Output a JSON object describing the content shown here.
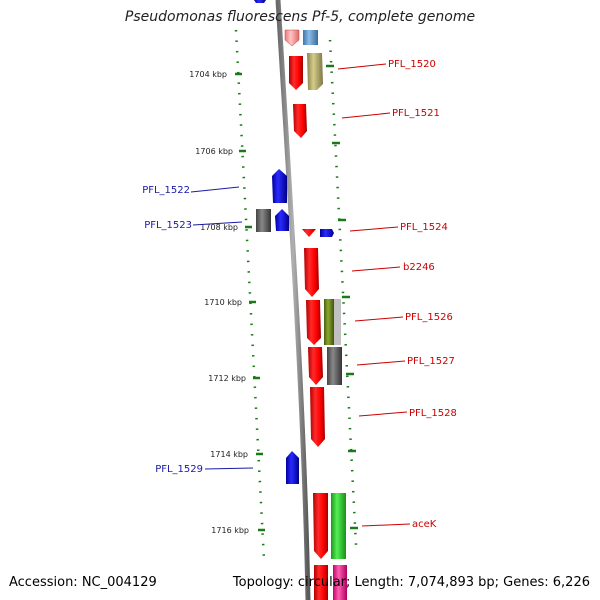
{
  "title": "Pseudomonas fluorescens Pf-5, complete genome",
  "accession_text": "Accession: NC_004129",
  "topology_text": "Topology: circular; Length: 7,074,893 bp; Genes: 6,226",
  "ticks": [
    {
      "label": "1704 kbp",
      "kbp": 1704
    },
    {
      "label": "1706 kbp",
      "kbp": 1706
    },
    {
      "label": "1708 kbp",
      "kbp": 1708
    },
    {
      "label": "1710 kbp",
      "kbp": 1710
    },
    {
      "label": "1712 kbp",
      "kbp": 1712
    },
    {
      "label": "1714 kbp",
      "kbp": 1714
    },
    {
      "label": "1716 kbp",
      "kbp": 1716
    }
  ],
  "gene_labels_left": [
    {
      "text": "PFL_1522",
      "color": "#1a1aa8"
    },
    {
      "text": "PFL_1523",
      "color": "#1a1aa8"
    },
    {
      "text": "PFL_1529",
      "color": "#1a1aa8"
    }
  ],
  "gene_labels_right": [
    {
      "text": "PFL_1520",
      "color": "#cc0000"
    },
    {
      "text": "PFL_1521",
      "color": "#cc0000"
    },
    {
      "text": "PFL_1524",
      "color": "#cc0000"
    },
    {
      "text": "b2246",
      "color": "#cc0000"
    },
    {
      "text": "PFL_1526",
      "color": "#cc0000"
    },
    {
      "text": "PFL_1527",
      "color": "#cc0000"
    },
    {
      "text": "PFL_1528",
      "color": "#cc0000"
    },
    {
      "text": "aceK",
      "color": "#cc0000"
    }
  ],
  "colors": {
    "forward_strand": "#ff0000",
    "reverse_strand": "#0000ff",
    "backbone": "#888888",
    "tick_marks": "#1a7a1a",
    "khaki": "#b5ad6a",
    "olive": "#6e8a1e",
    "gray_gene": "#666666",
    "green_gene": "#33cc33",
    "light_blue": "#6a9fd0",
    "pink": "#ff3399"
  }
}
